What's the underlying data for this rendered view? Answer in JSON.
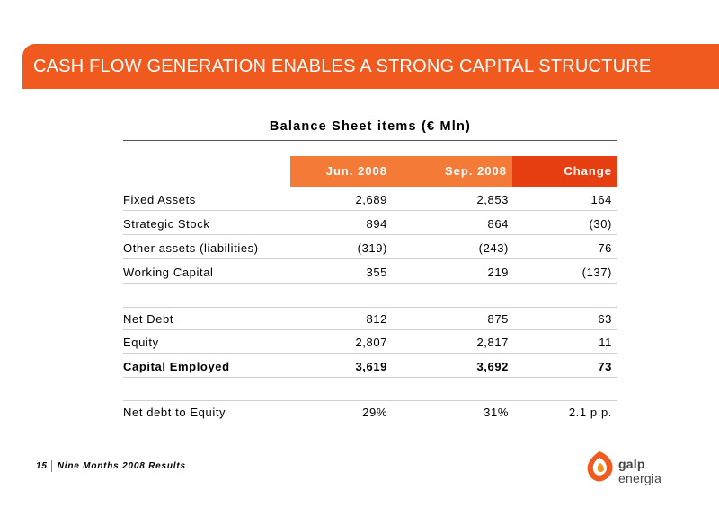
{
  "banner": {
    "title": "CASH FLOW GENERATION ENABLES A STRONG CAPITAL STRUCTURE"
  },
  "table": {
    "title": "Balance Sheet items (€ Mln)",
    "headers": [
      "Jun. 2008",
      "Sep. 2008",
      "Change"
    ],
    "rows": [
      {
        "label": "Fixed Assets",
        "jun": "2,689",
        "sep": "2,853",
        "change": "164"
      },
      {
        "label": "Strategic Stock",
        "jun": "894",
        "sep": "864",
        "change": "(30)"
      },
      {
        "label": "Other assets (liabilities)",
        "jun": "(319)",
        "sep": "(243)",
        "change": "76"
      },
      {
        "label": "Working Capital",
        "jun": "355",
        "sep": "219",
        "change": "(137)"
      },
      {
        "label": "Net Debt",
        "jun": "812",
        "sep": "875",
        "change": "63"
      },
      {
        "label": "Equity",
        "jun": "2,807",
        "sep": "2,817",
        "change": "11"
      },
      {
        "label": "Capital Employed",
        "jun": "3,619",
        "sep": "3,692",
        "change": "73"
      },
      {
        "label": "Net debt to Equity",
        "jun": "29%",
        "sep": "31%",
        "change": "2.1 p.p."
      }
    ]
  },
  "footer": {
    "page_number": "15",
    "text": "Nine Months 2008 Results"
  },
  "logo": {
    "brand": "galp",
    "suffix": "energia",
    "icon": "galp-flame-icon",
    "color": "#f05a1e"
  }
}
